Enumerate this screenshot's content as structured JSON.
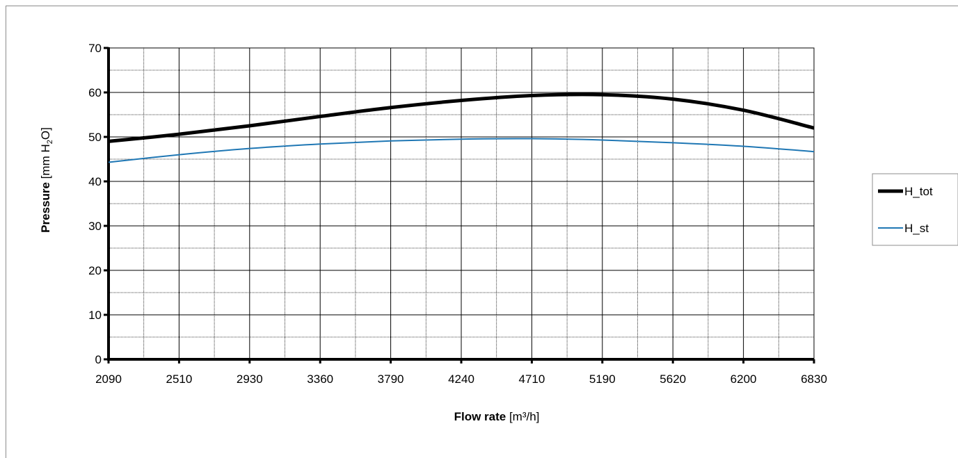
{
  "chart_data": {
    "type": "line",
    "xlabel": {
      "bold": "Flow rate",
      "unit": "[m³/h]"
    },
    "ylabel": {
      "bold": "Pressure",
      "unit_pre": "[mm H",
      "unit_sub": "2",
      "unit_post": "O]"
    },
    "categories": [
      "2090",
      "2510",
      "2930",
      "3360",
      "3790",
      "4240",
      "4710",
      "5190",
      "5620",
      "6200",
      "6830"
    ],
    "ylim": [
      0,
      70
    ],
    "yticks": [
      "0",
      "10",
      "20",
      "30",
      "40",
      "50",
      "60",
      "70"
    ],
    "grid": true,
    "legend_position": "right",
    "series": [
      {
        "name": "H_tot",
        "color": "#000000",
        "values": [
          49.0,
          50.6,
          52.5,
          54.6,
          56.6,
          58.2,
          59.3,
          59.5,
          58.5,
          56.0,
          52.0
        ]
      },
      {
        "name": "H_st",
        "color": "#1f77b4",
        "values": [
          44.3,
          46.0,
          47.4,
          48.4,
          49.1,
          49.5,
          49.6,
          49.3,
          48.7,
          47.9,
          46.7
        ]
      }
    ]
  }
}
